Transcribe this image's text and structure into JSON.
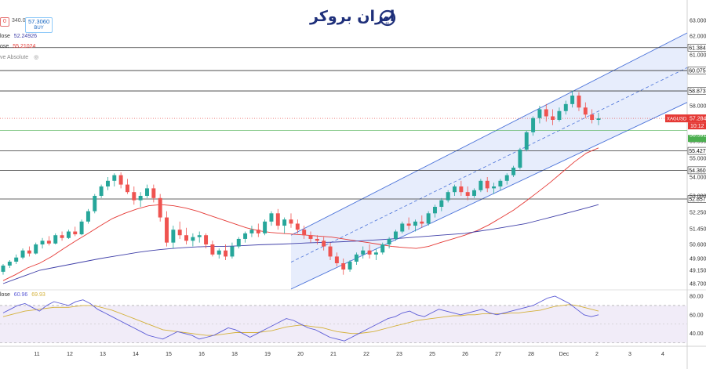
{
  "logo_text": "ایران بروکر",
  "order_box": {
    "left_value": "0",
    "spread": "340.0",
    "price": "57.3060",
    "buy_label": "BUY"
  },
  "legend": {
    "row1_label": "lose",
    "row1_value": "52.24926",
    "row2_label": "ose",
    "row2_value": "55.21024",
    "row3_label": "ve Absolute"
  },
  "rsi_legend": {
    "label": "lose",
    "v1": "60.96",
    "v2": "69.93"
  },
  "chart_data": {
    "type": "candlestick",
    "symbol": "XAGUSD",
    "price_axis_ticks": [
      63.0,
      62.0,
      61.0,
      58.0,
      56.0,
      55.0,
      54.0,
      53.0,
      52.25,
      51.45,
      50.6,
      49.9,
      49.15,
      48.7
    ],
    "price_axis_tick_labels": [
      "63.000",
      "62.000",
      "61.000",
      "58.000",
      "56.000",
      "55.000",
      "54.000",
      "53.000",
      "52.250",
      "51.450",
      "50.600",
      "49.900",
      "49.150",
      "48.700"
    ],
    "horizontal_levels": [
      {
        "value": 61.384,
        "label": "61.384"
      },
      {
        "value": 60.075,
        "label": "60.075"
      },
      {
        "value": 58.873,
        "label": "58.873"
      },
      {
        "value": 55.427,
        "label": "55.427"
      },
      {
        "value": 54.36,
        "label": "54.360"
      },
      {
        "value": 52.857,
        "label": "52.857"
      }
    ],
    "last_price": {
      "value": 57.284,
      "label": "57.284",
      "countdown": "10:12",
      "color": "#e53935"
    },
    "bid_line": {
      "value": 56.591,
      "label": "56.591",
      "color": "#4caf50"
    },
    "x_tick_labels": [
      "11",
      "12",
      "13",
      "14",
      "15",
      "16",
      "18",
      "19",
      "20",
      "21",
      "22",
      "23",
      "25",
      "26",
      "27",
      "28",
      "Dec",
      "2",
      "3",
      "4"
    ],
    "candles": [
      [
        49.1,
        49.55,
        49.0,
        49.45
      ],
      [
        49.45,
        49.8,
        49.3,
        49.7
      ],
      [
        49.7,
        50.1,
        49.55,
        49.95
      ],
      [
        49.95,
        50.4,
        49.85,
        50.3
      ],
      [
        50.3,
        50.5,
        50.0,
        50.15
      ],
      [
        50.15,
        50.7,
        50.1,
        50.6
      ],
      [
        50.6,
        50.95,
        50.4,
        50.8
      ],
      [
        50.8,
        51.05,
        50.55,
        50.65
      ],
      [
        50.65,
        51.2,
        50.6,
        51.1
      ],
      [
        51.1,
        51.3,
        50.8,
        50.95
      ],
      [
        50.95,
        51.4,
        50.9,
        51.3
      ],
      [
        51.3,
        51.55,
        51.05,
        51.15
      ],
      [
        51.15,
        51.9,
        51.1,
        51.8
      ],
      [
        51.8,
        52.4,
        51.7,
        52.3
      ],
      [
        52.3,
        53.1,
        52.2,
        53.0
      ],
      [
        53.0,
        53.6,
        52.9,
        53.5
      ],
      [
        53.5,
        54.0,
        53.3,
        53.8
      ],
      [
        53.8,
        54.2,
        53.5,
        54.1
      ],
      [
        54.1,
        54.25,
        53.4,
        53.6
      ],
      [
        53.6,
        53.9,
        53.1,
        53.2
      ],
      [
        53.2,
        53.5,
        52.6,
        52.8
      ],
      [
        52.8,
        53.2,
        52.5,
        53.0
      ],
      [
        53.0,
        53.6,
        52.9,
        53.4
      ],
      [
        53.4,
        53.6,
        52.7,
        52.9
      ],
      [
        52.9,
        53.1,
        51.8,
        52.0
      ],
      [
        52.0,
        52.3,
        50.5,
        50.7
      ],
      [
        50.7,
        51.6,
        50.4,
        51.4
      ],
      [
        51.4,
        51.8,
        50.9,
        51.1
      ],
      [
        51.1,
        51.5,
        50.6,
        50.8
      ],
      [
        50.8,
        51.2,
        50.5,
        51.0
      ],
      [
        51.0,
        51.3,
        50.7,
        51.1
      ],
      [
        51.1,
        51.2,
        50.4,
        50.6
      ],
      [
        50.6,
        50.8,
        50.0,
        50.1
      ],
      [
        50.1,
        50.4,
        49.9,
        50.3
      ],
      [
        50.3,
        50.6,
        49.8,
        50.0
      ],
      [
        50.0,
        50.7,
        49.9,
        50.5
      ],
      [
        50.5,
        51.0,
        50.4,
        50.9
      ],
      [
        50.9,
        51.3,
        50.7,
        51.2
      ],
      [
        51.2,
        51.6,
        51.0,
        51.4
      ],
      [
        51.4,
        51.7,
        51.0,
        51.2
      ],
      [
        51.2,
        51.9,
        51.1,
        51.8
      ],
      [
        51.8,
        52.3,
        51.6,
        52.2
      ],
      [
        52.2,
        52.4,
        51.4,
        51.6
      ],
      [
        51.6,
        52.0,
        51.2,
        51.9
      ],
      [
        51.9,
        52.2,
        51.5,
        51.7
      ],
      [
        51.7,
        51.9,
        51.2,
        51.4
      ],
      [
        51.4,
        51.6,
        50.9,
        51.1
      ],
      [
        51.1,
        51.3,
        50.7,
        50.9
      ],
      [
        50.9,
        51.1,
        50.6,
        50.8
      ],
      [
        50.8,
        51.0,
        50.3,
        50.5
      ],
      [
        50.5,
        50.7,
        49.8,
        50.0
      ],
      [
        50.0,
        50.2,
        49.4,
        49.6
      ],
      [
        49.6,
        49.9,
        49.0,
        49.2
      ],
      [
        49.2,
        49.8,
        49.1,
        49.7
      ],
      [
        49.7,
        50.2,
        49.5,
        50.1
      ],
      [
        50.1,
        50.5,
        49.9,
        50.3
      ],
      [
        50.3,
        50.6,
        49.9,
        50.1
      ],
      [
        50.1,
        50.4,
        49.8,
        50.2
      ],
      [
        50.2,
        50.7,
        50.1,
        50.6
      ],
      [
        50.6,
        51.0,
        50.4,
        50.9
      ],
      [
        50.9,
        51.4,
        50.8,
        51.3
      ],
      [
        51.3,
        51.8,
        51.2,
        51.7
      ],
      [
        51.7,
        52.0,
        51.4,
        51.6
      ],
      [
        51.6,
        51.9,
        51.3,
        51.8
      ],
      [
        51.8,
        52.1,
        51.5,
        51.7
      ],
      [
        51.7,
        52.3,
        51.6,
        52.2
      ],
      [
        52.2,
        52.6,
        52.0,
        52.5
      ],
      [
        52.5,
        52.9,
        52.3,
        52.8
      ],
      [
        52.8,
        53.3,
        52.7,
        53.2
      ],
      [
        53.2,
        53.6,
        53.0,
        53.5
      ],
      [
        53.5,
        53.8,
        53.0,
        53.2
      ],
      [
        53.2,
        53.5,
        52.8,
        53.0
      ],
      [
        53.0,
        53.4,
        52.9,
        53.3
      ],
      [
        53.3,
        53.9,
        53.2,
        53.8
      ],
      [
        53.8,
        54.0,
        53.2,
        53.4
      ],
      [
        53.4,
        53.7,
        53.1,
        53.5
      ],
      [
        53.5,
        53.9,
        53.3,
        53.8
      ],
      [
        53.8,
        54.2,
        53.6,
        54.1
      ],
      [
        54.1,
        54.6,
        54.0,
        54.5
      ],
      [
        54.5,
        55.6,
        54.4,
        55.5
      ],
      [
        55.5,
        56.6,
        55.4,
        56.5
      ],
      [
        56.5,
        57.4,
        56.3,
        57.3
      ],
      [
        57.3,
        58.0,
        57.0,
        57.8
      ],
      [
        57.8,
        58.1,
        57.1,
        57.4
      ],
      [
        57.4,
        57.8,
        56.9,
        57.2
      ],
      [
        57.2,
        57.9,
        57.1,
        57.7
      ],
      [
        57.7,
        58.3,
        57.5,
        58.1
      ],
      [
        58.1,
        58.9,
        57.9,
        58.6
      ],
      [
        58.6,
        58.8,
        57.7,
        57.9
      ],
      [
        57.9,
        58.2,
        57.3,
        57.5
      ],
      [
        57.5,
        57.8,
        57.0,
        57.2
      ],
      [
        57.2,
        57.6,
        56.9,
        57.28
      ]
    ],
    "moving_averages": [
      {
        "name": "",
        "color": "#e53935",
        "values": [
          48.8,
          49.0,
          49.3,
          49.6,
          50.0,
          50.4,
          50.8,
          51.2,
          51.6,
          51.95,
          52.2,
          52.4,
          52.55,
          52.6,
          52.55,
          52.45,
          52.3,
          52.1,
          51.9,
          51.7,
          51.5,
          51.35,
          51.25,
          51.2,
          51.15,
          51.1,
          51.05,
          51.0,
          50.9,
          50.8,
          50.7,
          50.6,
          50.5,
          50.45,
          50.4,
          50.5,
          50.7,
          50.9,
          51.1,
          51.35,
          51.65,
          52.0,
          52.35,
          52.75,
          53.2,
          53.7,
          54.25,
          54.8,
          55.3,
          55.6
        ]
      },
      {
        "name": "",
        "color": "#3f3fa8",
        "values": [
          48.7,
          48.85,
          49.0,
          49.15,
          49.3,
          49.45,
          49.6,
          49.75,
          49.9,
          50.0,
          50.1,
          50.2,
          50.28,
          50.35,
          50.4,
          50.45,
          50.48,
          50.5,
          50.5,
          50.52,
          50.55,
          50.58,
          50.6,
          50.62,
          50.65,
          50.68,
          50.7,
          50.72,
          50.75,
          50.78,
          50.82,
          50.86,
          50.9,
          50.95,
          51.0,
          51.05,
          51.1,
          51.15,
          51.2,
          51.3,
          51.4,
          51.5,
          51.6,
          51.7,
          51.85,
          52.0,
          52.15,
          52.3,
          52.45,
          52.6
        ]
      }
    ],
    "channel": {
      "start_index": 44,
      "end_index": 99,
      "lower_start": 48.5,
      "lower_end": 58.2,
      "upper_start": 51.1,
      "upper_end": 62.2
    },
    "rsi": {
      "ticks": [
        80.0,
        60.0,
        40.0
      ],
      "tick_labels": [
        "80.00",
        "60.00",
        "40.00"
      ],
      "overbought": 70,
      "oversold": 30,
      "line_color": "#5b5bd6",
      "signal_color": "#d4b13a",
      "values": [
        62,
        66,
        70,
        72,
        68,
        64,
        70,
        74,
        72,
        70,
        74,
        76,
        72,
        66,
        62,
        58,
        54,
        50,
        46,
        42,
        38,
        36,
        34,
        38,
        42,
        40,
        38,
        34,
        36,
        38,
        42,
        46,
        44,
        40,
        36,
        40,
        44,
        48,
        52,
        56,
        54,
        50,
        46,
        44,
        40,
        36,
        34,
        32,
        36,
        40,
        44,
        48,
        52,
        56,
        58,
        62,
        64,
        60,
        58,
        62,
        66,
        64,
        62,
        60,
        62,
        64,
        66,
        62,
        60,
        62,
        64,
        66,
        68,
        70,
        74,
        78,
        80,
        76,
        72,
        66,
        60,
        58,
        60
      ],
      "signal": [
        58,
        60,
        62,
        64,
        65,
        66,
        67,
        68,
        68,
        68,
        69,
        70,
        70,
        69,
        67,
        65,
        62,
        59,
        56,
        53,
        50,
        47,
        44,
        43,
        42,
        41,
        40,
        39,
        38,
        38,
        39,
        40,
        41,
        41,
        41,
        41,
        42,
        43,
        45,
        47,
        48,
        49,
        48,
        47,
        46,
        44,
        42,
        41,
        40,
        40,
        41,
        42,
        44,
        46,
        48,
        50,
        52,
        54,
        55,
        56,
        57,
        58,
        59,
        59,
        60,
        60,
        61,
        61,
        61,
        61,
        62,
        62,
        63,
        64,
        65,
        67,
        69,
        70,
        71,
        70,
        68,
        66,
        64
      ]
    }
  }
}
